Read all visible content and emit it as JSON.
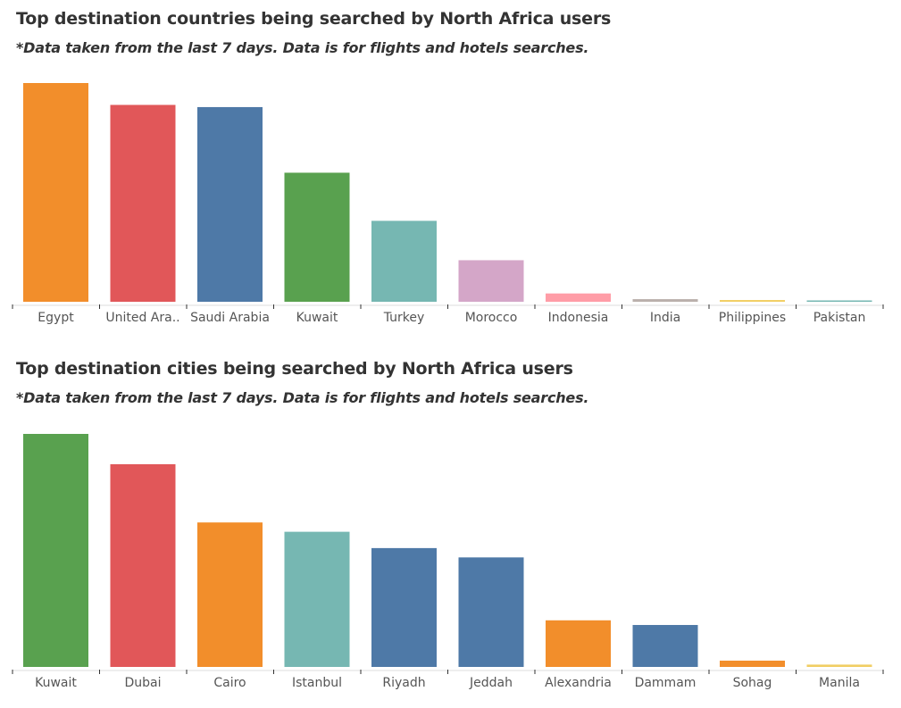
{
  "chart_data": [
    {
      "type": "bar",
      "title": "Top destination countries being searched by North Africa users",
      "subtitle": "*Data taken from the last 7 days. Data is for flights and hotels searches.",
      "xlabel": "",
      "ylabel": "",
      "categories": [
        "Egypt",
        "United Ara..",
        "Saudi Arabia",
        "Kuwait",
        "Turkey",
        "Morocco",
        "Indonesia",
        "India",
        "Philippines",
        "Pakistan"
      ],
      "values": [
        100,
        90,
        89,
        59,
        37,
        19,
        3.8,
        1.2,
        0.8,
        0.4
      ],
      "colors": [
        "#F28E2B",
        "#E15759",
        "#4E79A7",
        "#59A14F",
        "#76B7B2",
        "#D4A6C8",
        "#FF9DA7",
        "#BAB0AC",
        "#F1CE63",
        "#76B7B2"
      ],
      "ylim": [
        0,
        100
      ],
      "grid": false,
      "legend": "none"
    },
    {
      "type": "bar",
      "title": "Top destination cities being searched by North Africa users",
      "subtitle": "*Data taken from the last 7 days. Data is for flights and hotels searches.",
      "xlabel": "",
      "ylabel": "",
      "categories": [
        "Kuwait",
        "Dubai",
        "Cairo",
        "Istanbul",
        "Riyadh",
        "Jeddah",
        "Alexandria",
        "Dammam",
        "Sohag",
        "Manila"
      ],
      "values": [
        100,
        87,
        62,
        58,
        51,
        47,
        20,
        18,
        2.7,
        1.0
      ],
      "colors": [
        "#59A14F",
        "#E15759",
        "#F28E2B",
        "#76B7B2",
        "#4E79A7",
        "#4E79A7",
        "#F28E2B",
        "#4E79A7",
        "#F28E2B",
        "#F1CE63"
      ],
      "ylim": [
        0,
        100
      ],
      "grid": false,
      "legend": "none"
    }
  ]
}
